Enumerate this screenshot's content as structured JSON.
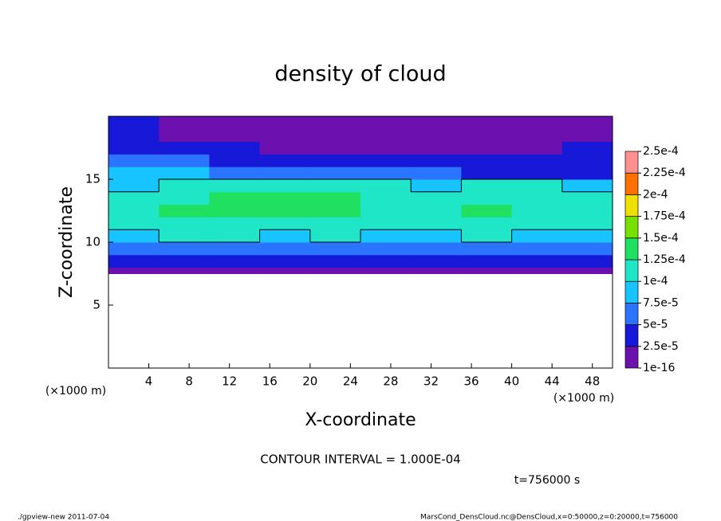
{
  "chart_data": {
    "type": "heatmap",
    "title": "density of cloud",
    "xlabel": "X-coordinate",
    "ylabel": "Z-coordinate",
    "x_unit": "(×1000 m)",
    "y_unit": "(×1000 m)",
    "xlim": [
      0,
      50
    ],
    "ylim": [
      0,
      20
    ],
    "xticks": [
      4,
      8,
      12,
      16,
      20,
      24,
      28,
      32,
      36,
      40,
      44,
      48
    ],
    "yticks": [
      5,
      10,
      15
    ],
    "x_edges": [
      0,
      5,
      10,
      15,
      20,
      25,
      30,
      35,
      40,
      45,
      50
    ],
    "z_edges": [
      7.5,
      8,
      9,
      10,
      11,
      12,
      13,
      14,
      15,
      16,
      17,
      18,
      19,
      20
    ],
    "values": [
      [
        1e-05,
        1e-05,
        1e-05,
        1e-05,
        1e-05,
        1e-05,
        1e-05,
        1e-05,
        1e-05,
        1e-05
      ],
      [
        3.5e-05,
        3.5e-05,
        3.5e-05,
        3.5e-05,
        3.5e-05,
        3.5e-05,
        3.5e-05,
        3.5e-05,
        3.5e-05,
        3.5e-05
      ],
      [
        7e-05,
        7e-05,
        7e-05,
        7e-05,
        7e-05,
        7e-05,
        7e-05,
        7e-05,
        7e-05,
        7e-05
      ],
      [
        9e-05,
        0.000105,
        0.000105,
        9e-05,
        0.000105,
        9e-05,
        9e-05,
        0.000105,
        9e-05,
        9e-05
      ],
      [
        0.000115,
        0.000115,
        0.00012,
        0.00012,
        0.000115,
        0.00011,
        0.000115,
        0.000115,
        0.000115,
        0.00011
      ],
      [
        0.00012,
        0.00013,
        0.000135,
        0.000135,
        0.00013,
        0.00012,
        0.00012,
        0.000125,
        0.00012,
        0.000115
      ],
      [
        0.00011,
        0.00012,
        0.00013,
        0.00013,
        0.000125,
        0.000115,
        0.00011,
        0.000115,
        0.000115,
        0.000105
      ],
      [
        9e-05,
        0.000105,
        0.00011,
        0.00011,
        0.000105,
        0.000105,
        9e-05,
        0.000105,
        0.000105,
        9e-05
      ],
      [
        8e-05,
        8e-05,
        7e-05,
        6e-05,
        6e-05,
        5e-05,
        5e-05,
        4.5e-05,
        4e-05,
        4e-05
      ],
      [
        6e-05,
        5e-05,
        4e-05,
        3e-05,
        3e-05,
        3e-05,
        3e-05,
        3e-05,
        3e-05,
        3e-05
      ],
      [
        3.5e-05,
        3e-05,
        2.5e-05,
        2e-05,
        2e-05,
        2e-05,
        2e-05,
        2e-05,
        2e-05,
        2.5e-05
      ],
      [
        2.5e-05,
        2e-05,
        1.5e-05,
        1.5e-05,
        1.5e-05,
        1.5e-05,
        1.5e-05,
        1.5e-05,
        1.5e-05,
        2e-05
      ],
      [
        3e-05,
        2e-05,
        1e-05,
        1e-05,
        1e-05,
        1e-05,
        1e-05,
        1e-05,
        1e-05,
        1.5e-05
      ]
    ],
    "levels": [
      {
        "value": 1e-16,
        "label": "1e-16"
      },
      {
        "value": 2.5e-05,
        "label": "2.5e-5"
      },
      {
        "value": 5e-05,
        "label": "5e-5"
      },
      {
        "value": 7.5e-05,
        "label": "7.5e-5"
      },
      {
        "value": 0.0001,
        "label": "1e-4"
      },
      {
        "value": 0.000125,
        "label": "1.25e-4"
      },
      {
        "value": 0.00015,
        "label": "1.5e-4"
      },
      {
        "value": 0.000175,
        "label": "1.75e-4"
      },
      {
        "value": 0.0002,
        "label": "2e-4"
      },
      {
        "value": 0.000225,
        "label": "2.25e-4"
      },
      {
        "value": 0.00025,
        "label": "2.5e-4"
      }
    ],
    "colors": [
      "#6c10b0",
      "#1818d8",
      "#2a74ff",
      "#18c4ff",
      "#20e6c8",
      "#20e060",
      "#78e000",
      "#f0e000",
      "#ff7000",
      "#ff9090"
    ],
    "contour_level": 0.0001,
    "contour_text": "CONTOUR INTERVAL = 1.000E-04",
    "time_text": "t=756000 s",
    "footer_left": "./gpview-new  2011-07-04",
    "footer_right": "MarsCond_DensCloud.nc@DensCloud,x=0:50000,z=0:20000,t=756000"
  }
}
